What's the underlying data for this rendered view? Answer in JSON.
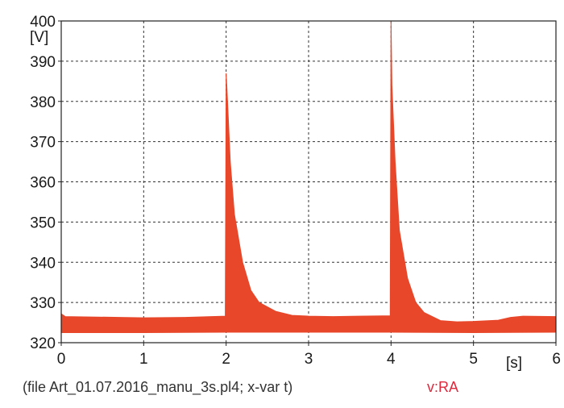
{
  "chart_data": {
    "type": "area",
    "x_unit_label": "[s]",
    "y_unit_label": "[V]",
    "xlim": [
      0,
      6
    ],
    "ylim": [
      320,
      400
    ],
    "x_ticks": [
      "0",
      "1",
      "2",
      "3",
      "4",
      "5",
      "6"
    ],
    "y_ticks": [
      "320",
      "330",
      "340",
      "350",
      "360",
      "370",
      "380",
      "390",
      "400"
    ],
    "grid": true,
    "series": [
      {
        "name": "v:RA",
        "color": "#e8472a",
        "upper": [
          [
            0,
            327.2
          ],
          [
            0.05,
            326.5
          ],
          [
            1.0,
            326.2
          ],
          [
            1.5,
            326.3
          ],
          [
            1.99,
            326.6
          ],
          [
            2.0,
            387.0
          ],
          [
            2.01,
            383.0
          ],
          [
            2.05,
            365.0
          ],
          [
            2.1,
            352.0
          ],
          [
            2.2,
            340.0
          ],
          [
            2.3,
            333.0
          ],
          [
            2.4,
            330.0
          ],
          [
            2.6,
            327.8
          ],
          [
            2.8,
            326.8
          ],
          [
            3.0,
            326.6
          ],
          [
            3.3,
            326.5
          ],
          [
            3.6,
            326.6
          ],
          [
            3.99,
            326.7
          ],
          [
            4.0,
            400.0
          ],
          [
            4.01,
            384.0
          ],
          [
            4.05,
            365.0
          ],
          [
            4.1,
            348.0
          ],
          [
            4.2,
            336.0
          ],
          [
            4.3,
            330.0
          ],
          [
            4.4,
            327.5
          ],
          [
            4.6,
            325.5
          ],
          [
            4.8,
            325.2
          ],
          [
            5.0,
            325.3
          ],
          [
            5.3,
            325.6
          ],
          [
            5.45,
            326.3
          ],
          [
            5.6,
            326.6
          ],
          [
            6.0,
            326.5
          ]
        ],
        "lower": [
          [
            0,
            322.5
          ],
          [
            1.0,
            322.5
          ],
          [
            2.0,
            322.6
          ],
          [
            3.0,
            322.6
          ],
          [
            4.0,
            322.6
          ],
          [
            5.0,
            322.5
          ],
          [
            6.0,
            322.6
          ]
        ]
      }
    ]
  },
  "footer": {
    "file_text": "(file Art_01.07.2016_manu_3s.pl4; x-var t)",
    "variable_label": "v:RA",
    "variable_color": "#e0283c"
  }
}
